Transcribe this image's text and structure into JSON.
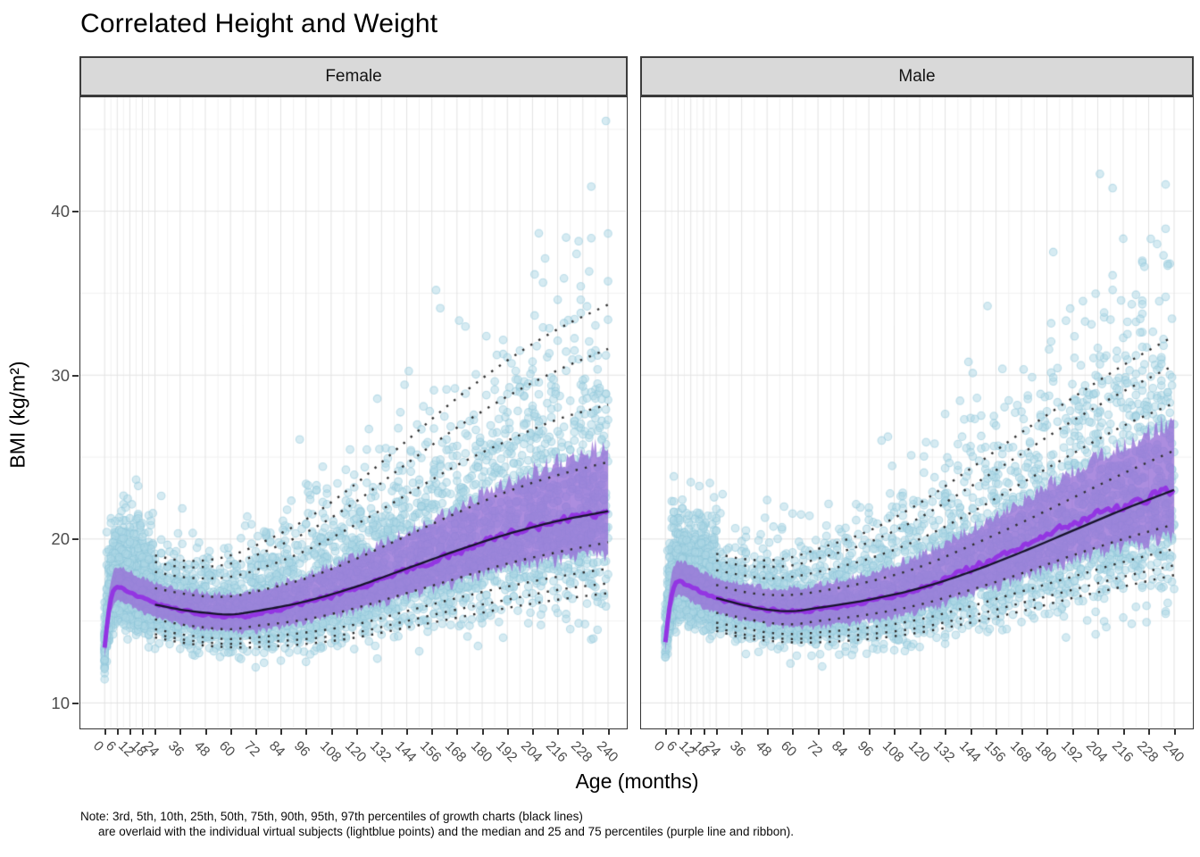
{
  "chart_data": {
    "type": "scatter",
    "title": "Correlated Height and Weight",
    "xlabel": "Age (months)",
    "ylabel": "BMI (kg/m²)",
    "xlim": [
      -11.5,
      251.5
    ],
    "ylim": [
      8.5,
      46.95
    ],
    "grid": "major+minor, light gray on white",
    "legend_position": "none",
    "x_ticks": [
      0,
      6,
      12,
      18,
      24,
      36,
      48,
      60,
      72,
      84,
      96,
      108,
      120,
      132,
      144,
      156,
      168,
      180,
      192,
      204,
      216,
      228,
      240
    ],
    "y_ticks": [
      10,
      20,
      30,
      40
    ],
    "percentile_labels": [
      "3rd",
      "5th",
      "10th",
      "25th",
      "50th",
      "75th",
      "90th",
      "95th",
      "97th"
    ],
    "dotted_percentiles": [
      "P3",
      "P5",
      "P10",
      "P25",
      "P75",
      "P90",
      "P95",
      "P97"
    ],
    "solid_percentile": "P50",
    "percentile_months": [
      24,
      36,
      48,
      60,
      72,
      96,
      120,
      144,
      168,
      192,
      216,
      240
    ],
    "panels": [
      {
        "label": "Female",
        "percentiles": {
          "P3": [
            14.0,
            13.7,
            13.5,
            13.4,
            13.4,
            13.6,
            14.0,
            14.6,
            15.2,
            15.8,
            16.3,
            16.7
          ],
          "P5": [
            14.2,
            13.9,
            13.7,
            13.6,
            13.7,
            13.9,
            14.3,
            15.0,
            15.7,
            16.3,
            16.9,
            17.3
          ],
          "P10": [
            14.5,
            14.2,
            14.0,
            13.9,
            14.0,
            14.3,
            14.8,
            15.6,
            16.4,
            17.1,
            17.7,
            18.2
          ],
          "P25": [
            15.1,
            14.8,
            14.6,
            14.5,
            14.7,
            15.1,
            15.8,
            16.7,
            17.6,
            18.5,
            19.2,
            19.8
          ],
          "P50": [
            16.0,
            15.7,
            15.5,
            15.4,
            15.6,
            16.2,
            17.1,
            18.2,
            19.3,
            20.3,
            21.1,
            21.7
          ],
          "P75": [
            17.0,
            16.7,
            16.5,
            16.5,
            16.8,
            17.6,
            18.8,
            20.2,
            21.6,
            22.9,
            23.9,
            24.7
          ],
          "P90": [
            18.0,
            17.7,
            17.6,
            17.7,
            18.1,
            19.3,
            20.9,
            22.7,
            24.5,
            26.0,
            27.3,
            28.2
          ],
          "P95": [
            18.6,
            18.3,
            18.3,
            18.5,
            19.0,
            20.4,
            22.3,
            24.6,
            26.8,
            28.7,
            30.3,
            31.6
          ],
          "P97": [
            19.0,
            18.7,
            18.7,
            19.0,
            19.6,
            21.2,
            23.4,
            26.0,
            28.6,
            30.9,
            32.8,
            34.3
          ]
        },
        "median_curve": {
          "months": [
            0,
            2,
            4,
            6,
            9,
            12,
            18,
            24,
            36,
            48,
            60,
            72,
            96,
            120,
            144,
            168,
            192,
            216,
            240
          ],
          "values": [
            13.4,
            15.6,
            16.8,
            17.1,
            17.0,
            16.8,
            16.4,
            16.1,
            15.7,
            15.4,
            15.3,
            15.4,
            16.1,
            17.0,
            18.1,
            19.2,
            20.3,
            21.1,
            21.7
          ]
        },
        "scatter": {
          "seed": 101,
          "n": 5200,
          "p_young": 0.3,
          "max_bmi": 46.6
        }
      },
      {
        "label": "Male",
        "percentiles": {
          "P3": [
            14.4,
            14.0,
            13.8,
            13.7,
            13.7,
            13.9,
            14.3,
            14.9,
            15.6,
            16.4,
            17.1,
            17.8
          ],
          "P5": [
            14.6,
            14.2,
            14.0,
            13.9,
            14.0,
            14.2,
            14.6,
            15.3,
            16.1,
            16.9,
            17.7,
            18.4
          ],
          "P10": [
            14.9,
            14.6,
            14.3,
            14.2,
            14.3,
            14.6,
            15.1,
            15.9,
            16.8,
            17.7,
            18.6,
            19.4
          ],
          "P25": [
            15.5,
            15.2,
            14.9,
            14.8,
            15.0,
            15.4,
            16.0,
            16.9,
            17.9,
            19.0,
            20.0,
            20.9
          ],
          "P50": [
            16.4,
            16.0,
            15.7,
            15.6,
            15.8,
            16.3,
            17.0,
            18.0,
            19.2,
            20.5,
            21.8,
            23.0
          ],
          "P75": [
            17.2,
            16.8,
            16.6,
            16.6,
            16.8,
            17.4,
            18.3,
            19.6,
            21.0,
            22.5,
            24.0,
            25.4
          ],
          "P90": [
            18.1,
            17.8,
            17.6,
            17.7,
            18.0,
            18.8,
            20.0,
            21.6,
            23.4,
            25.2,
            26.9,
            28.3
          ],
          "P95": [
            18.7,
            18.4,
            18.3,
            18.4,
            18.8,
            19.8,
            21.3,
            23.2,
            25.2,
            27.2,
            29.0,
            30.6
          ],
          "P97": [
            19.1,
            18.8,
            18.7,
            18.9,
            19.4,
            20.5,
            22.2,
            24.3,
            26.5,
            28.6,
            30.6,
            32.4
          ]
        },
        "median_curve": {
          "months": [
            0,
            2,
            4,
            6,
            9,
            12,
            18,
            24,
            36,
            48,
            60,
            72,
            96,
            120,
            144,
            168,
            192,
            216,
            240
          ],
          "values": [
            13.7,
            15.9,
            17.1,
            17.4,
            17.3,
            17.1,
            16.7,
            16.4,
            16.0,
            15.7,
            15.6,
            15.7,
            16.2,
            17.0,
            18.2,
            19.5,
            20.9,
            22.0,
            23.0
          ]
        },
        "scatter": {
          "seed": 202,
          "n": 5200,
          "p_young": 0.3,
          "max_bmi": 42.6
        }
      }
    ],
    "colors": {
      "point_fill": "rgba(173,216,230,0.50)",
      "point_stroke": "rgba(141,198,218,0.50)",
      "ribbon": "rgba(151,113,215,0.80)",
      "median_line": "#9335E2",
      "p50_line": "#16142B",
      "dotted_line": "#2E2E2E",
      "strip_bg": "#D9D9D9",
      "grid_major": "#E2E2E2",
      "grid_minor": "#F1F1F1",
      "axis_text": "#4D4D4D",
      "tick": "#333333"
    }
  },
  "note": {
    "line1": "Note: 3rd, 5th, 10th, 25th, 50th, 75th, 90th, 95th, 97th percentiles of growth charts (black lines)",
    "line2": "are overlaid with the individual virtual subjects (lightblue points) and the median and 25 and 75 percentiles (purple line and ribbon)."
  }
}
